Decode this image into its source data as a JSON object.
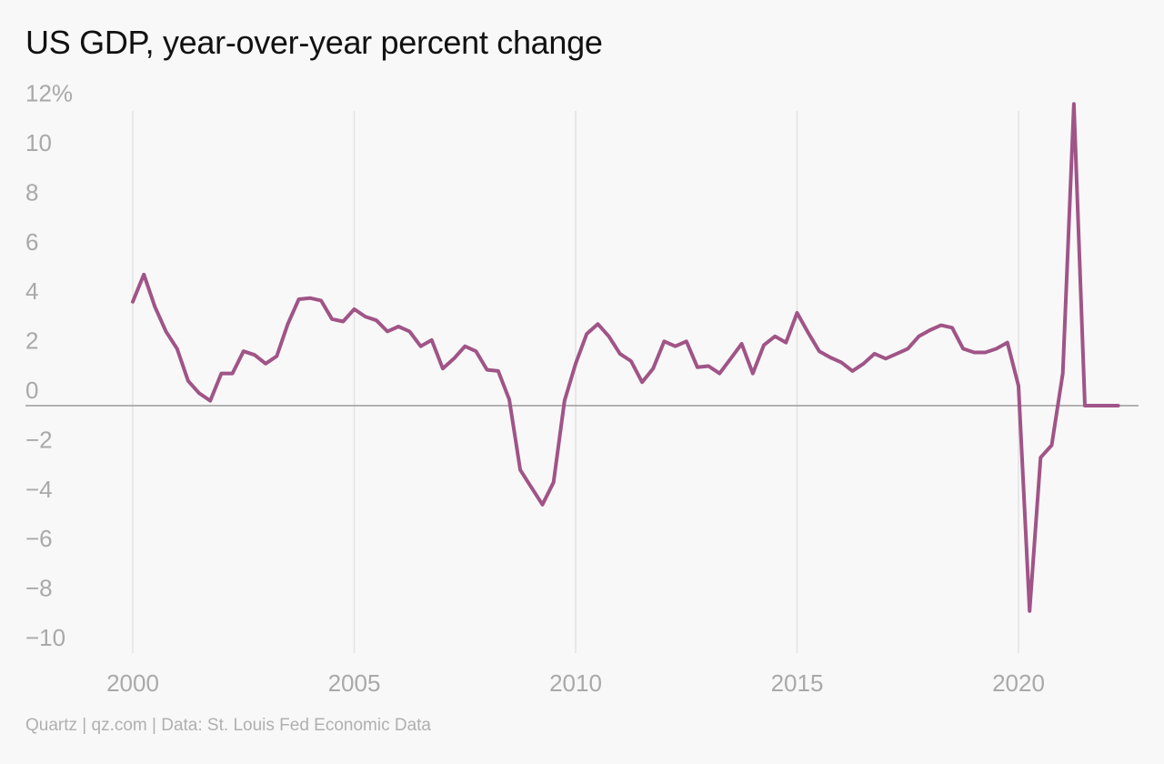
{
  "title": "US GDP, year-over-year percent change",
  "credit": "Quartz | qz.com | Data: St. Louis Fed Economic Data",
  "chart_data": {
    "type": "line",
    "title": "US GDP, year-over-year percent change",
    "xlabel": "",
    "ylabel": "",
    "xlim": [
      1998.6,
      2023.4
    ],
    "ylim": [
      -10.6,
      12.6
    ],
    "x_ticks": [
      2000,
      2005,
      2010,
      2015,
      2020
    ],
    "x_tick_labels": [
      "2000",
      "2005",
      "2010",
      "2015",
      "2020"
    ],
    "y_ticks": [
      12,
      10,
      8,
      6,
      4,
      2,
      0,
      -2,
      -4,
      -6,
      -8,
      -10
    ],
    "y_tick_labels": [
      "12%",
      "10",
      "8",
      "6",
      "4",
      "2",
      "0",
      "−2",
      "−4",
      "−6",
      "−8",
      "−10"
    ],
    "grid": "vertical",
    "zero_line": true,
    "line_color": "#a05487",
    "series": [
      {
        "x": [
          2000.0,
          2000.25,
          2000.5,
          2000.75,
          2001.0,
          2001.25,
          2001.5,
          2001.75,
          2002.0,
          2002.25,
          2002.5,
          2002.75,
          2003.0,
          2003.25,
          2003.5,
          2003.75,
          2004.0,
          2004.25,
          2004.5,
          2004.75,
          2005.0,
          2005.25,
          2005.5,
          2005.75,
          2006.0,
          2006.25,
          2006.5,
          2006.75,
          2007.0,
          2007.25,
          2007.5,
          2007.75,
          2008.0,
          2008.25,
          2008.5,
          2008.75,
          2009.0,
          2009.25,
          2009.5,
          2009.75,
          2010.0,
          2010.25,
          2010.5,
          2010.75,
          2011.0,
          2011.25,
          2011.5,
          2011.75,
          2012.0,
          2012.25,
          2012.5,
          2012.75,
          2013.0,
          2013.25,
          2013.5,
          2013.75,
          2014.0,
          2014.25,
          2014.5,
          2014.75,
          2015.0,
          2015.25,
          2015.5,
          2015.75,
          2016.0,
          2016.25,
          2016.5,
          2016.75,
          2017.0,
          2017.25,
          2017.5,
          2017.75,
          2018.0,
          2018.25,
          2018.5,
          2018.75,
          2019.0,
          2019.25,
          2019.5,
          2019.75,
          2020.0,
          2020.25,
          2020.5,
          2020.75,
          2021.0,
          2021.25,
          2021.5,
          2021.75,
          2022.0,
          2022.25
        ],
        "values": [
          4.2,
          5.3,
          4.0,
          3.0,
          2.3,
          1.0,
          0.5,
          0.2,
          1.3,
          1.3,
          2.2,
          2.05,
          1.7,
          2.0,
          3.3,
          4.3,
          4.35,
          4.25,
          3.5,
          3.4,
          3.9,
          3.6,
          3.45,
          3.0,
          3.2,
          3.0,
          2.4,
          2.65,
          1.5,
          1.9,
          2.4,
          2.2,
          1.45,
          1.4,
          0.25,
          -2.6,
          -3.3,
          -4.0,
          -3.1,
          0.2,
          1.7,
          2.9,
          3.3,
          2.8,
          2.1,
          1.8,
          0.95,
          1.5,
          2.6,
          2.4,
          2.6,
          1.55,
          1.6,
          1.3,
          1.9,
          2.5,
          1.3,
          2.45,
          2.8,
          2.55,
          3.75,
          2.95,
          2.2,
          1.95,
          1.75,
          1.4,
          1.7,
          2.1,
          1.9,
          2.1,
          2.3,
          2.8,
          3.05,
          3.25,
          3.15,
          2.3,
          2.15,
          2.15,
          2.3,
          2.55,
          0.8,
          -8.3,
          -2.1,
          -1.6,
          1.3,
          12.2,
          0.0,
          0.0,
          0.0,
          0.0
        ]
      }
    ]
  }
}
